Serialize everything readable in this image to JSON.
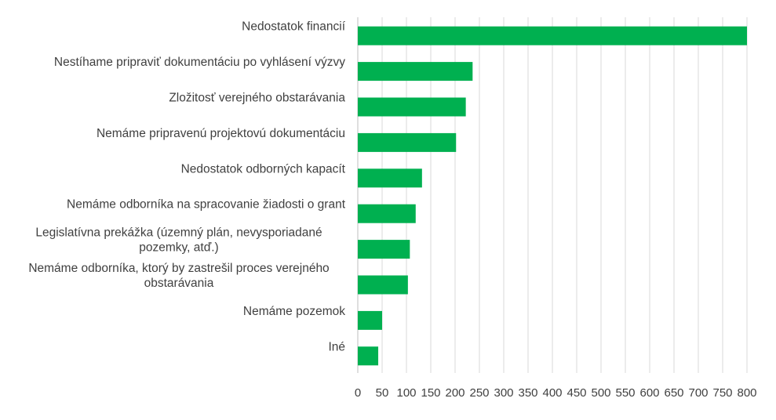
{
  "chart_data": {
    "type": "bar",
    "orientation": "horizontal",
    "categories": [
      "Nedostatok financií",
      "Nestíhame pripraviť dokumentáciu po vyhlásení výzvy",
      "Zložitosť verejného obstarávania",
      "Nemáme pripravenú projektovú dokumentáciu",
      "Nedostatok odborných kapacít",
      "Nemáme odborníka na spracovanie žiadosti o grant",
      "Legislatívna prekážka (územný plán, nevysporiadané pozemky, atď.)",
      "Nemáme odborníka, ktorý by zastrešil proces verejného obstarávania",
      "Nemáme pozemok",
      "Iné"
    ],
    "category_lines": [
      [
        "Nedostatok financií"
      ],
      [
        "Nestíhame pripraviť dokumentáciu po vyhlásení výzvy"
      ],
      [
        "Zložitosť verejného obstarávania"
      ],
      [
        "Nemáme pripravenú projektovú dokumentáciu"
      ],
      [
        "Nedostatok odborných kapacít"
      ],
      [
        "Nemáme odborníka na spracovanie žiadosti o grant"
      ],
      [
        "Legislatívna prekážka (územný plán, nevysporiadané",
        "pozemky, atď.)"
      ],
      [
        "Nemáme odborníka, ktorý by zastrešil proces verejného",
        "obstarávania"
      ],
      [
        "Nemáme pozemok"
      ],
      [
        "Iné"
      ]
    ],
    "values": [
      800,
      236,
      222,
      202,
      132,
      119,
      107,
      103,
      50,
      42
    ],
    "xlim": [
      0,
      800
    ],
    "xticks": [
      0,
      50,
      100,
      150,
      200,
      250,
      300,
      350,
      400,
      450,
      500,
      550,
      600,
      650,
      700,
      750,
      800
    ],
    "title": "",
    "xlabel": "",
    "ylabel": "",
    "grid": "vertical",
    "legend": "none",
    "bar_color": "#00b050"
  }
}
